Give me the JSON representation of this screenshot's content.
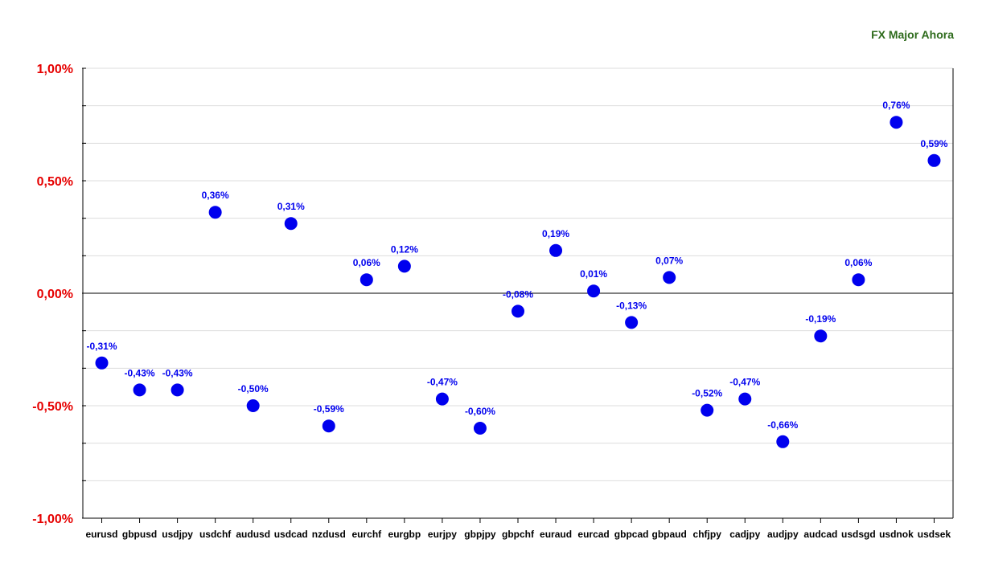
{
  "chart_data": {
    "type": "scatter",
    "title": "FX Major Ahora",
    "xlabel": "",
    "ylabel": "",
    "ylim": [
      -1.0,
      1.0
    ],
    "y_tick_labels": [
      "1,00%",
      "0,50%",
      "0,00%",
      "-0,50%",
      "-1,00%"
    ],
    "y_tick_values": [
      1.0,
      0.5,
      0.0,
      -0.5,
      -1.0
    ],
    "grid": true,
    "categories": [
      "eurusd",
      "gbpusd",
      "usdjpy",
      "usdchf",
      "audusd",
      "usdcad",
      "nzdusd",
      "eurchf",
      "eurgbp",
      "eurjpy",
      "gbpjpy",
      "gbpchf",
      "euraud",
      "eurcad",
      "gbpcad",
      "gbpaud",
      "chfjpy",
      "cadjpy",
      "audjpy",
      "audcad",
      "usdsgd",
      "usdnok",
      "usdsek"
    ],
    "values": [
      -0.31,
      -0.43,
      -0.43,
      0.36,
      -0.5,
      0.31,
      -0.59,
      0.06,
      0.12,
      -0.47,
      -0.6,
      -0.08,
      0.19,
      0.01,
      -0.13,
      0.07,
      -0.52,
      -0.47,
      -0.66,
      -0.19,
      0.06,
      0.76,
      0.59
    ],
    "value_labels": [
      "-0,31%",
      "-0,43%",
      "-0,43%",
      "0,36%",
      "-0,50%",
      "0,31%",
      "-0,59%",
      "0,06%",
      "0,12%",
      "-0,47%",
      "-0,60%",
      "-0,08%",
      "0,19%",
      "0,01%",
      "-0,13%",
      "0,07%",
      "-0,52%",
      "-0,47%",
      "-0,66%",
      "-0,19%",
      "0,06%",
      "0,76%",
      "0,59%"
    ],
    "colors": {
      "marker": "#0000ee",
      "label": "#0000ee",
      "tick_label": "#e60000",
      "title": "#2e6b1c"
    }
  }
}
